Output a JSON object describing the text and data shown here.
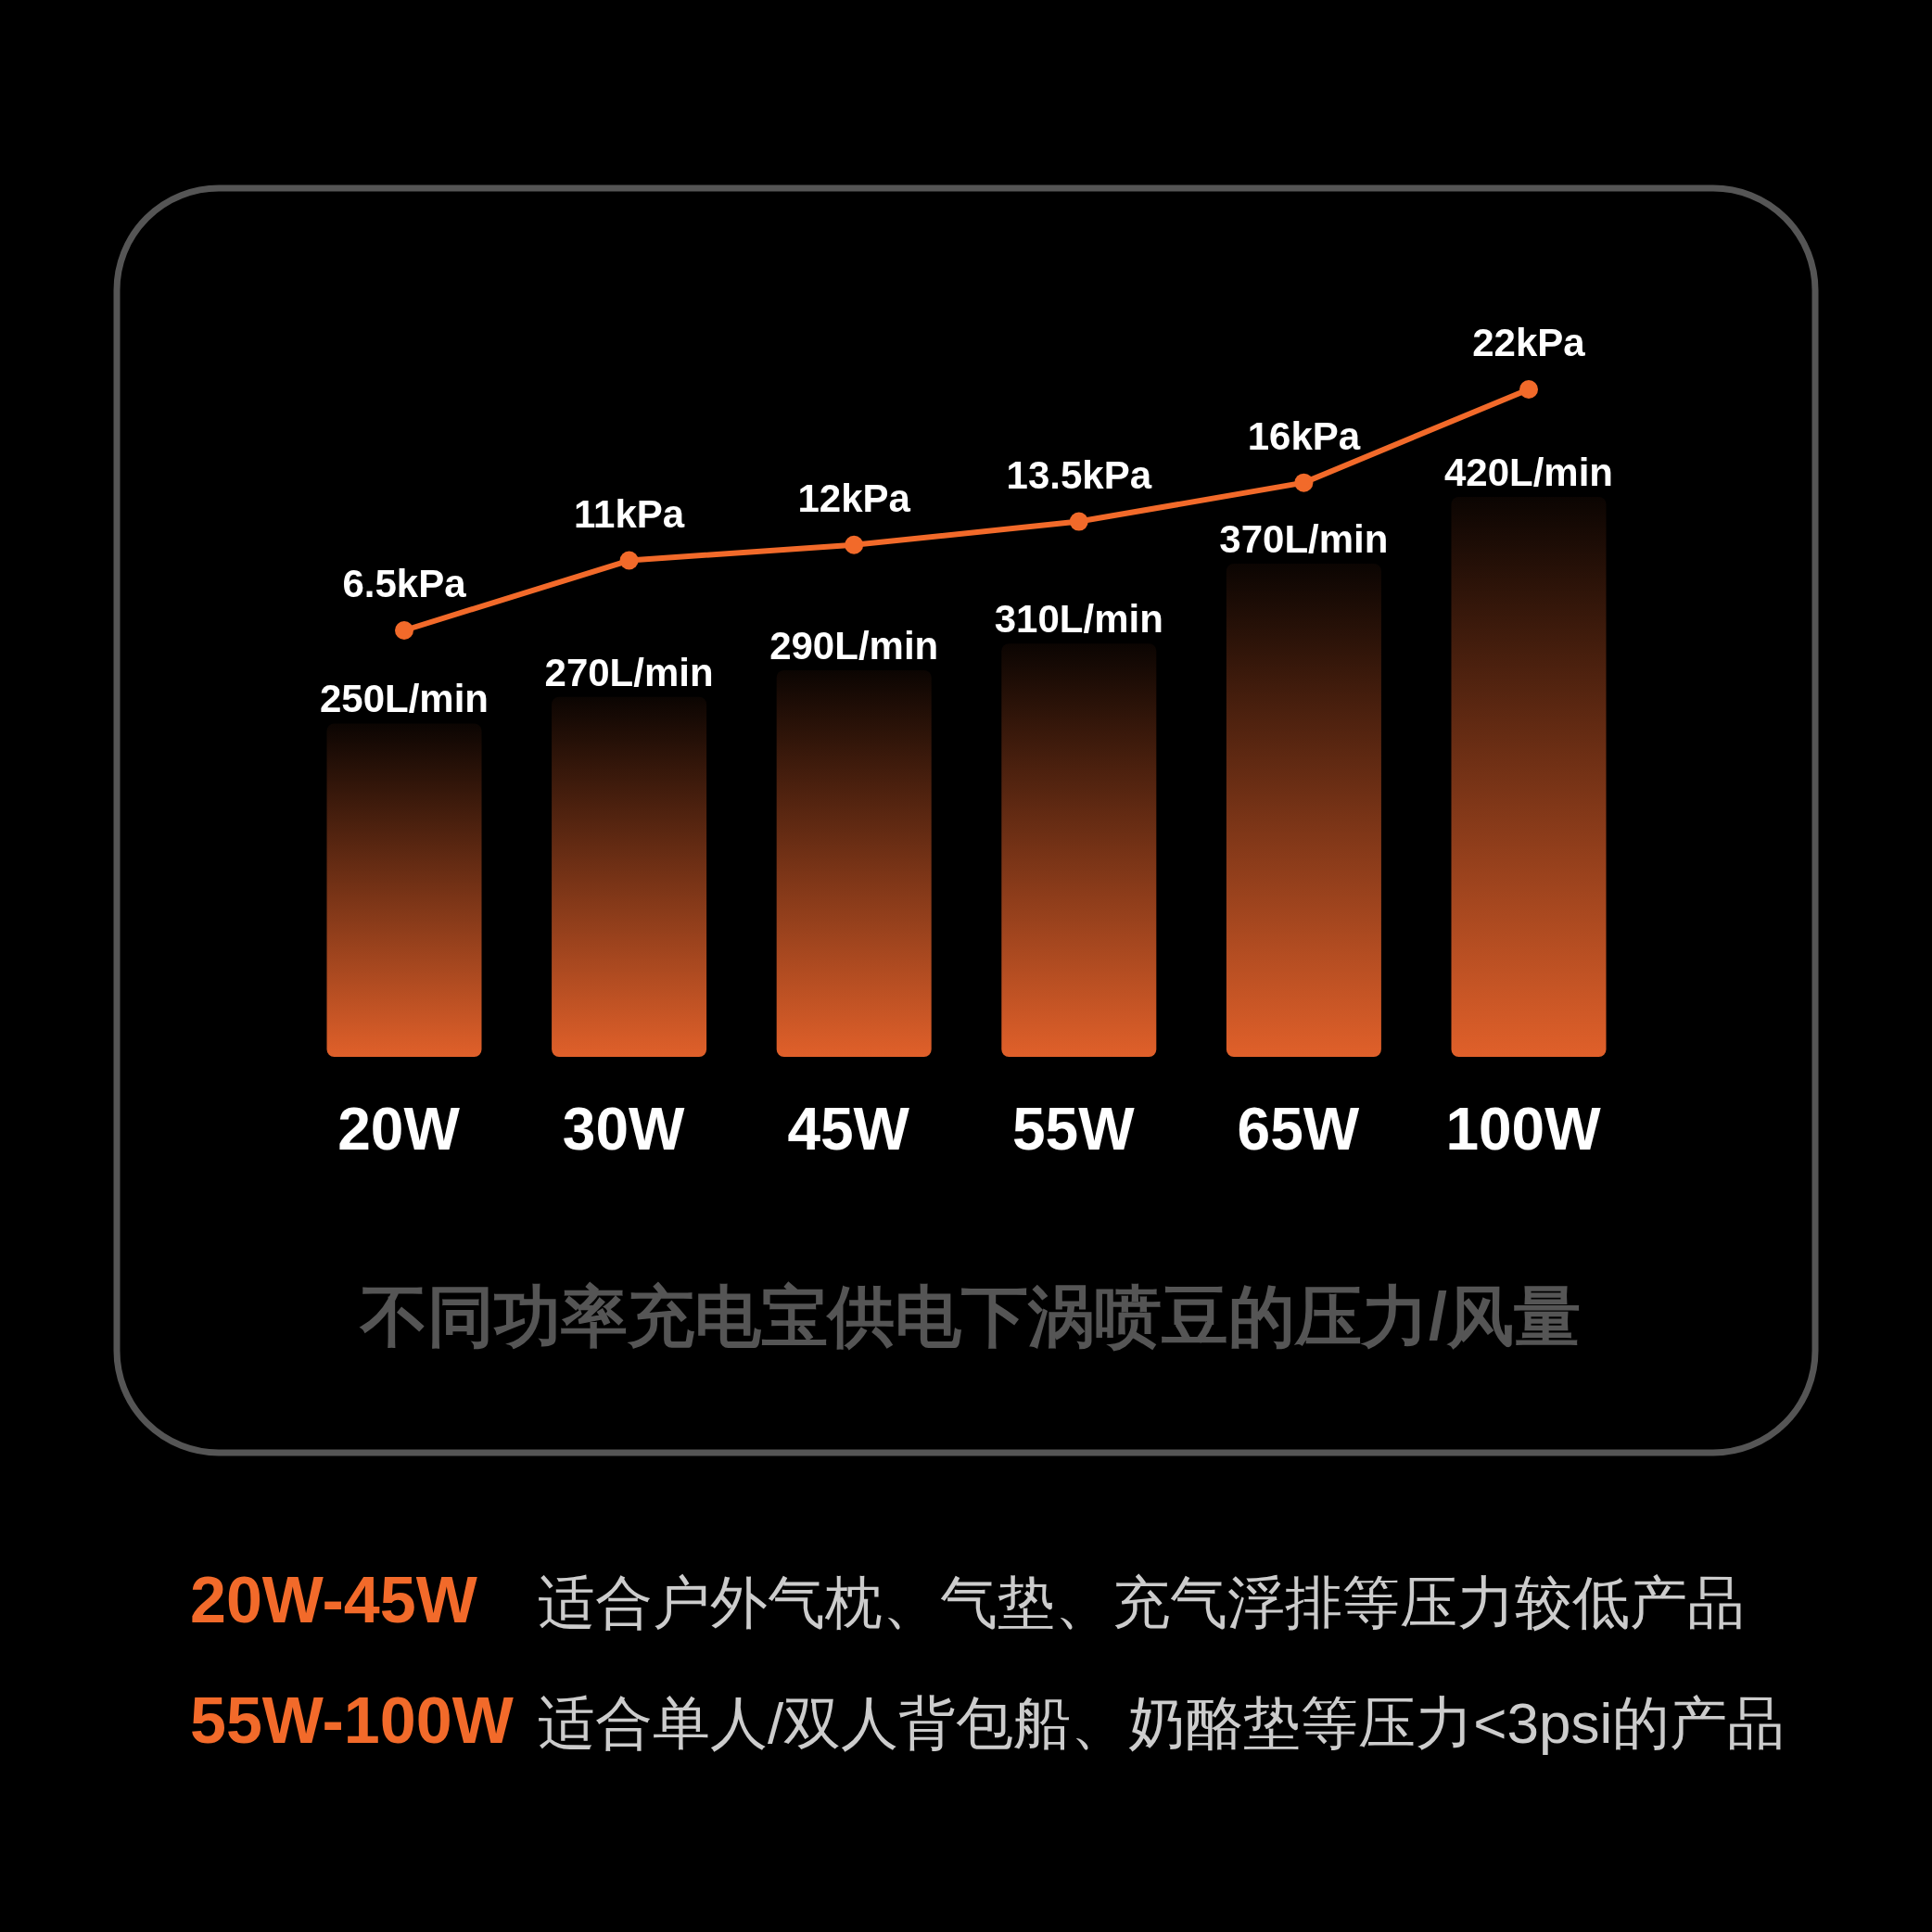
{
  "chart_data": {
    "type": "bar",
    "title": "不同功率充电宝供电下涡喷豆的压力/风量",
    "categories": [
      "20W",
      "30W",
      "45W",
      "55W",
      "65W",
      "100W"
    ],
    "marker": "circle",
    "series": [
      {
        "color": "#e0602a",
        "values": [
          250,
          270,
          290,
          310,
          370,
          420
        ],
        "value_labels": [
          "250L/min",
          "270L/min",
          "290L/min",
          "310L/min",
          "370L/min",
          "420L/min"
        ]
      },
      {
        "type": "line",
        "axis": "y2",
        "color": "#f26a2a",
        "values": [
          6.5,
          11,
          12,
          13.5,
          16,
          22
        ],
        "value_labels": [
          "6.5kPa",
          "11kPa",
          "12kPa",
          "13.5kPa",
          "16kPa",
          "22kPa"
        ]
      }
    ],
    "annotations": [
      "20W-45W",
      "适合户外气枕、气垫、充气浮排等压力较低产品",
      "55W-100W",
      "适合单人/双人背包船、奶酪垫等压力<3psi的产品"
    ]
  }
}
